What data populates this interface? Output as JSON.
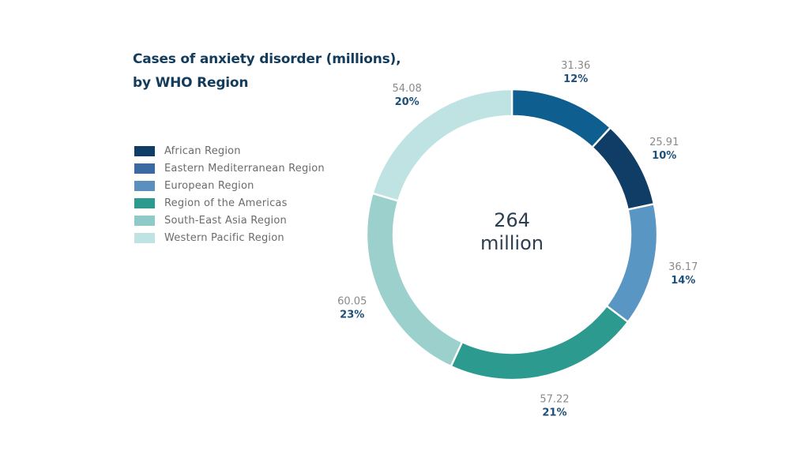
{
  "chart_data": {
    "type": "pie",
    "title": "Cases of anxiety disorder (millions),",
    "title_line2": "by WHO Region",
    "center": {
      "value": "264",
      "unit": "million"
    },
    "legend_position": "left",
    "categories": [
      "African Region",
      "Eastern Mediterranean Region",
      "European Region",
      "Region of the Americas",
      "South-East Asia Region",
      "Western Pacific Region"
    ],
    "legend_colors": [
      "#0f3d66",
      "#3b6aa3",
      "#5a8fbe",
      "#2c9a8f",
      "#8ecbc8",
      "#bfe2e2"
    ],
    "slices": [
      {
        "value": 31.36,
        "label": "31.36",
        "percent": "12%",
        "color": "#0e5f8f"
      },
      {
        "value": 25.91,
        "label": "25.91",
        "percent": "10%",
        "color": "#0f3d66"
      },
      {
        "value": 36.17,
        "label": "36.17",
        "percent": "14%",
        "color": "#5a96c4"
      },
      {
        "value": 57.22,
        "label": "57.22",
        "percent": "21%",
        "color": "#2c9a8f"
      },
      {
        "value": 60.05,
        "label": "60.05",
        "percent": "23%",
        "color": "#9bd0cd"
      },
      {
        "value": 54.08,
        "label": "54.08",
        "percent": "20%",
        "color": "#bfe2e2"
      }
    ]
  }
}
